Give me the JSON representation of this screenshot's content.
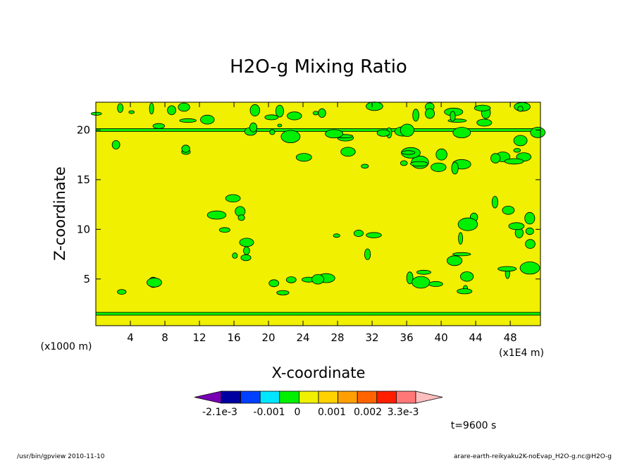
{
  "chart_data": {
    "type": "heatmap",
    "title": "H2O-g Mixing Ratio",
    "xlabel": "X-coordinate",
    "ylabel": "Z-coordinate",
    "x_unit": "(x1E4 m)",
    "y_unit": "(x1000 m)",
    "xlim": [
      0,
      51.5
    ],
    "ylim": [
      0.3,
      22.8
    ],
    "xticks": [
      "4",
      "8",
      "12",
      "16",
      "20",
      "24",
      "28",
      "32",
      "36",
      "40",
      "44",
      "48"
    ],
    "yticks": [
      "5",
      "10",
      "15",
      "20"
    ],
    "background_level": "0 – 0.0005",
    "background_color": "#f0f000",
    "colorbar": {
      "colors": [
        "#7800b4",
        "#0000a0",
        "#0040ff",
        "#00e6ff",
        "#00f000",
        "#f0f000",
        "#ffd200",
        "#ffa000",
        "#ff6400",
        "#ff1e00",
        "#ff7878",
        "#ffbebe"
      ],
      "labels": [
        "-2.1e-3",
        "-0.001",
        "0",
        "0.001",
        "0.002",
        "3.3e-3"
      ]
    },
    "bands": [
      {
        "level": "-0.0005 – 0",
        "color": "#00f000",
        "z": 1.5
      },
      {
        "level": "-0.0005 – 0",
        "color": "#00f000",
        "z": 20.0
      }
    ],
    "regions": [
      {
        "level": "-0.0005 – 0",
        "color": "#00f000",
        "x": [
          3,
          8
        ],
        "z": [
          3.5,
          6
        ]
      },
      {
        "level": "-0.0005 – 0",
        "color": "#00f000",
        "x": [
          11,
          18
        ],
        "z": [
          6.5,
          13.5
        ]
      },
      {
        "level": "-0.0005 – 0",
        "color": "#00f000",
        "x": [
          19,
          23
        ],
        "z": [
          3.5,
          5
        ]
      },
      {
        "level": "-0.0005 – 0",
        "color": "#00f000",
        "x": [
          23.5,
          27
        ],
        "z": [
          4,
          6
        ]
      },
      {
        "level": "-0.0005 – 0",
        "color": "#00f000",
        "x": [
          27.5,
          32.5
        ],
        "z": [
          7,
          11
        ]
      },
      {
        "level": "-0.0005 – 0",
        "color": "#00f000",
        "x": [
          35,
          38
        ],
        "z": [
          4.5,
          6
        ]
      },
      {
        "level": "-0.0005 – 0",
        "color": "#00f000",
        "x": [
          39,
          44
        ],
        "z": [
          3,
          4.5
        ]
      },
      {
        "level": "-0.0005 – 0",
        "color": "#00f000",
        "x": [
          41,
          51.5
        ],
        "z": [
          5,
          13
        ]
      },
      {
        "level": "-0.0005 – 0",
        "color": "#00f000",
        "x": [
          0,
          51.5
        ],
        "z": [
          16,
          22.5
        ]
      }
    ]
  },
  "time_label": "t=9600 s",
  "footer": {
    "left": "/usr/bin/gpview  2010-11-10",
    "right": "arare-earth-reikyaku2K-noEvap_H2O-g.nc@H2O-g"
  }
}
